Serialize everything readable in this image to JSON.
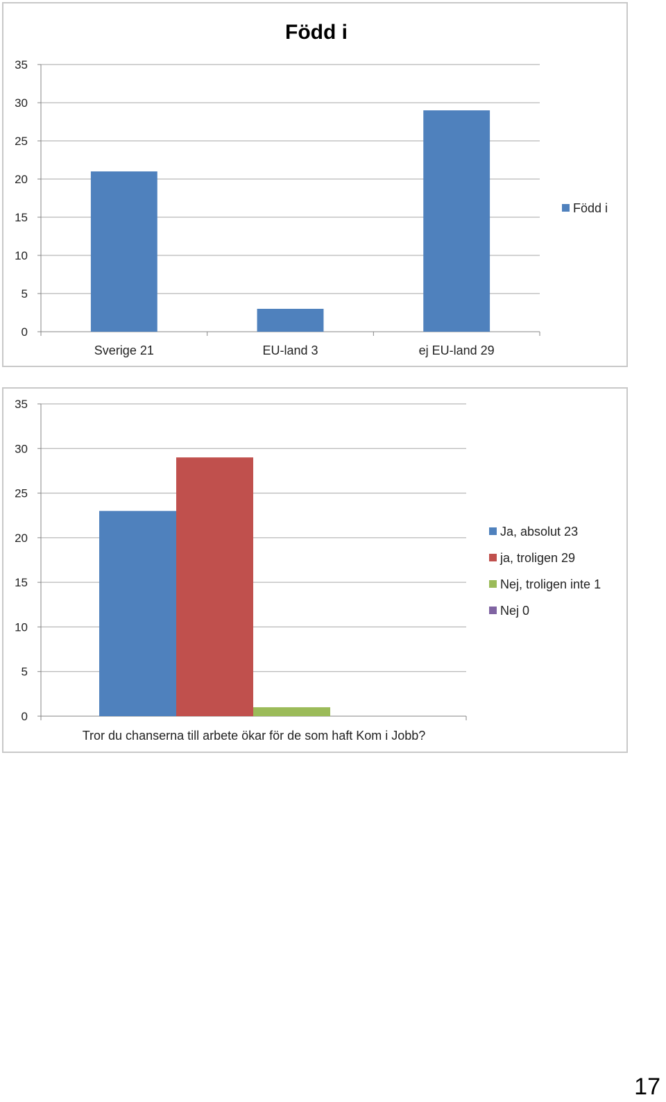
{
  "chart_data": [
    {
      "type": "bar",
      "title": "Född i",
      "categories": [
        "Sverige   21",
        "EU-land   3",
        "ej EU-land   29"
      ],
      "series": [
        {
          "name": "Född i",
          "values": [
            21,
            3,
            29
          ],
          "color": "#4F81BD"
        }
      ],
      "ylim": [
        0,
        35
      ],
      "yticks": [
        "0",
        "5",
        "10",
        "15",
        "20",
        "25",
        "30",
        "35"
      ],
      "grid": true,
      "legend": "right"
    },
    {
      "type": "bar",
      "title": "",
      "categories": [
        "Tror du chanserna till arbete ökar för de som haft Kom i Jobb?"
      ],
      "series": [
        {
          "name": "Ja, absolut  23",
          "values": [
            23
          ],
          "color": "#4F81BD"
        },
        {
          "name": "ja, troligen  29",
          "values": [
            29
          ],
          "color": "#C0504D"
        },
        {
          "name": "Nej, troligen inte  1",
          "values": [
            1
          ],
          "color": "#9BBB59"
        },
        {
          "name": "Nej  0",
          "values": [
            0
          ],
          "color": "#8064A2"
        }
      ],
      "ylim": [
        0,
        35
      ],
      "yticks": [
        "0",
        "5",
        "10",
        "15",
        "20",
        "25",
        "30",
        "35"
      ],
      "grid": true,
      "legend": "right"
    }
  ],
  "page_number": "17"
}
